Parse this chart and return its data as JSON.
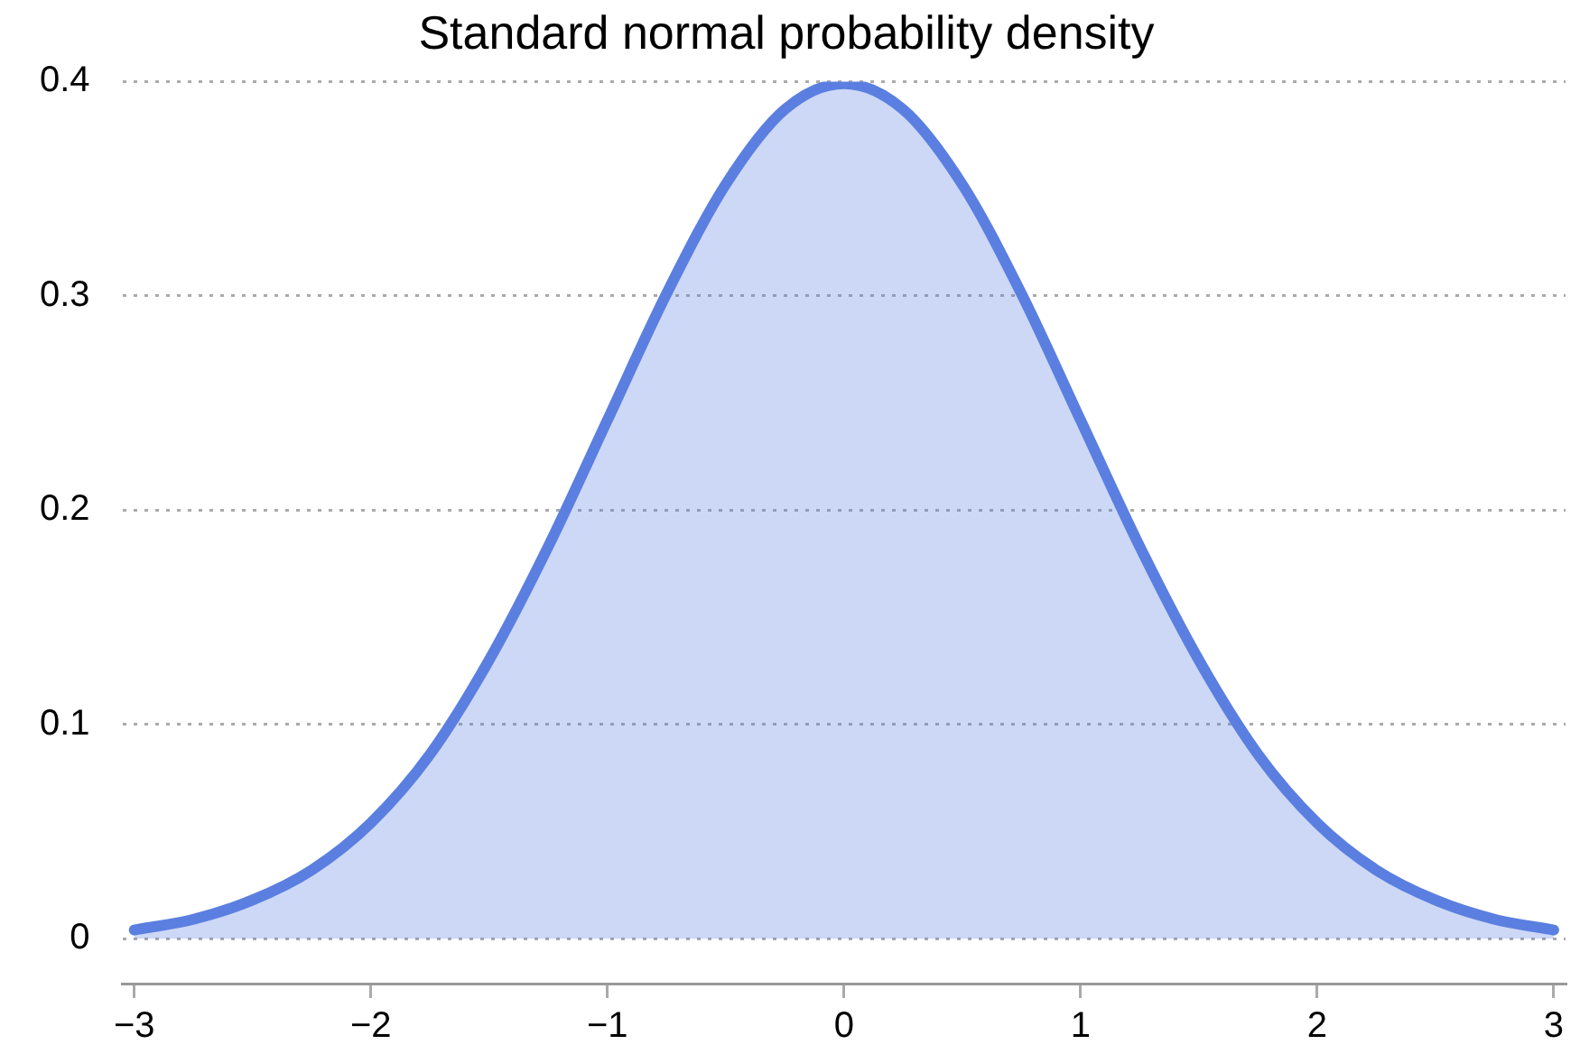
{
  "chart_data": {
    "type": "area",
    "title": "Standard normal probability density",
    "x": [
      -3,
      -2.75,
      -2.5,
      -2.25,
      -2,
      -1.75,
      -1.5,
      -1.25,
      -1,
      -0.75,
      -0.5,
      -0.25,
      0,
      0.25,
      0.5,
      0.75,
      1,
      1.25,
      1.5,
      1.75,
      2,
      2.25,
      2.5,
      2.75,
      3
    ],
    "series": [
      {
        "color": "#5b7fe0",
        "values": [
          0.004,
          0.009,
          0.018,
          0.032,
          0.054,
          0.086,
          0.13,
          0.183,
          0.242,
          0.301,
          0.352,
          0.387,
          0.399,
          0.387,
          0.352,
          0.301,
          0.242,
          0.183,
          0.13,
          0.086,
          0.054,
          0.032,
          0.018,
          0.009,
          0.004
        ]
      }
    ],
    "xlim": [
      -3.05,
      3.05
    ],
    "ylim": [
      -0.021,
      0.4
    ],
    "xticks": [
      {
        "value": -3,
        "label": "−3"
      },
      {
        "value": -2,
        "label": "−2"
      },
      {
        "value": -1,
        "label": "−1"
      },
      0,
      1,
      2,
      3
    ],
    "yticks": [
      0,
      0.1,
      0.2,
      0.3,
      0.4
    ],
    "grid": "y",
    "legend": false,
    "marker": "none",
    "line_style": "solid"
  }
}
